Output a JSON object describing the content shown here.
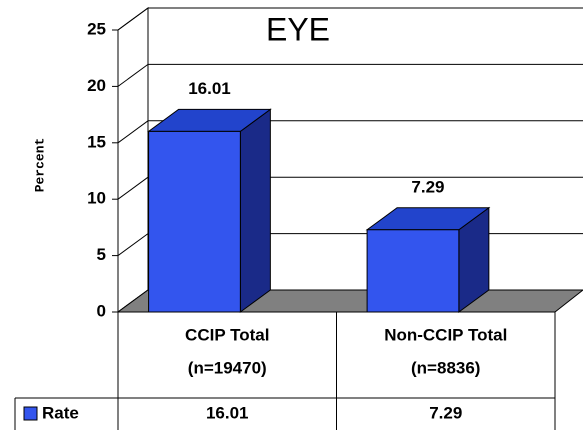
{
  "chart_data": {
    "type": "bar3d",
    "title": "EYE",
    "y_label": "Percent",
    "categories": [
      [
        "CCIP Total",
        "(n=19470)"
      ],
      [
        "Non-CCIP Total",
        "(n=8836)"
      ]
    ],
    "series": [
      {
        "name": "Rate",
        "color": "#3355ee",
        "values": [
          16.01,
          7.29
        ]
      }
    ],
    "ylim": [
      0,
      25
    ],
    "yticks": [
      0,
      5,
      10,
      15,
      20,
      25
    ],
    "grid": true,
    "data_table": true
  }
}
